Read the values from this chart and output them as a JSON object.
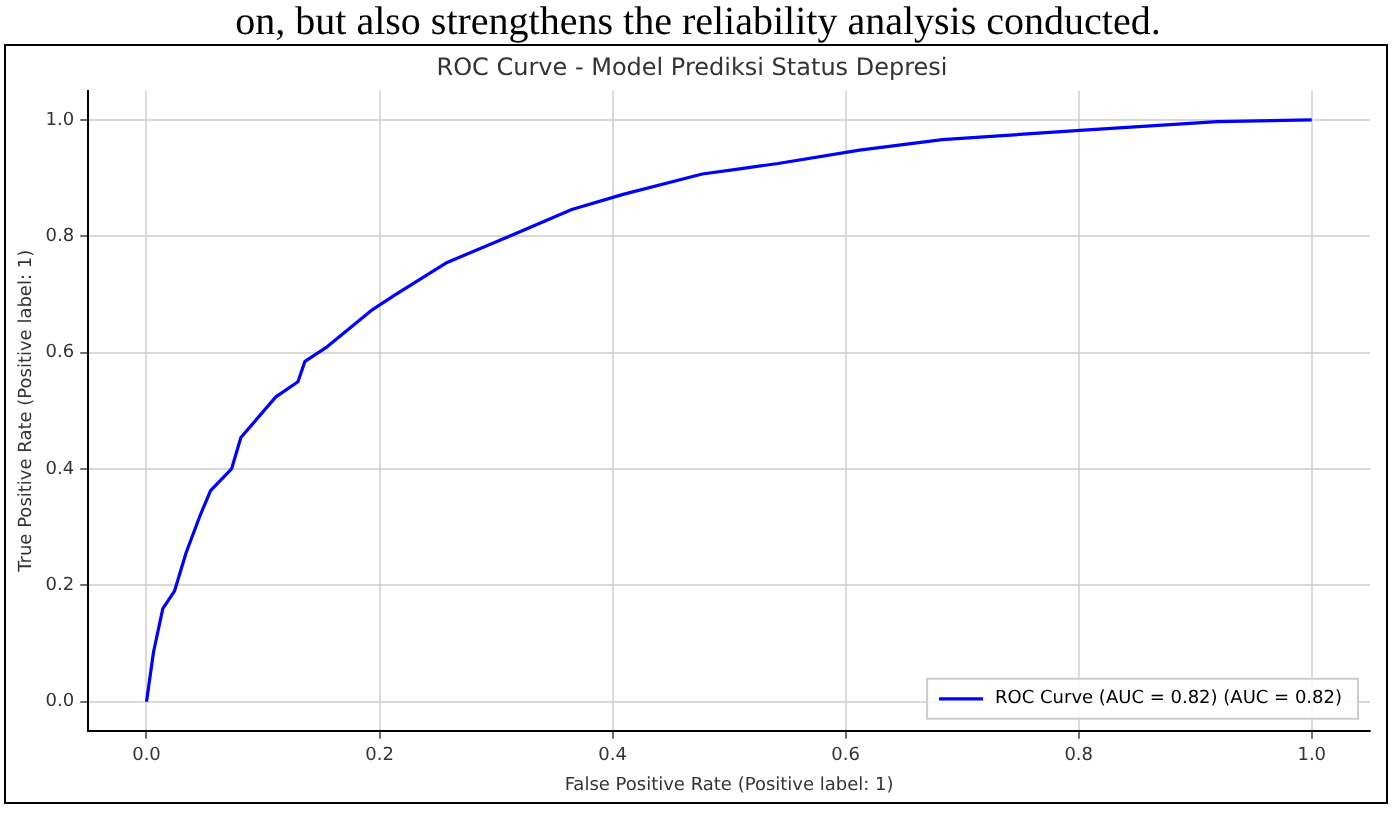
{
  "chart_data": {
    "type": "line",
    "title": "ROC Curve - Model Prediksi Status Depresi",
    "xlabel": "False Positive Rate (Positive label: 1)",
    "ylabel": "True Positive Rate (Positive label: 1)",
    "annotations": [
      "on, but also strengthens the reliability analysis conducted."
    ],
    "series": [
      {
        "name": "ROC Curve (AUC = 0.82) (AUC = 0.82)",
        "color": "#0000ff",
        "x": [
          0,
          0.006,
          0.014,
          0.024,
          0.034,
          0.046,
          0.055,
          0.073,
          0.081,
          0.111,
          0.13,
          0.136,
          0.155,
          0.194,
          0.214,
          0.258,
          0.315,
          0.365,
          0.409,
          0.477,
          0.506,
          0.542,
          0.612,
          0.683,
          0.801,
          0.919,
          1.0
        ],
        "values": [
          0,
          0.085,
          0.16,
          0.19,
          0.256,
          0.32,
          0.363,
          0.4,
          0.454,
          0.524,
          0.55,
          0.585,
          0.61,
          0.674,
          0.7,
          0.755,
          0.803,
          0.846,
          0.872,
          0.907,
          0.915,
          0.925,
          0.948,
          0.966,
          0.982,
          0.997,
          1.0
        ]
      }
    ],
    "xlim": [
      -0.05,
      1.05
    ],
    "ylim": [
      -0.05,
      1.05
    ],
    "xticks": [
      {
        "value": 0,
        "label": "0.0"
      },
      {
        "value": 0.2,
        "label": "0.2"
      },
      {
        "value": 0.4,
        "label": "0.4"
      },
      {
        "value": 0.6,
        "label": "0.6"
      },
      {
        "value": 0.8,
        "label": "0.8"
      },
      {
        "value": 1,
        "label": "1.0"
      }
    ],
    "yticks": [
      {
        "value": 0,
        "label": "0.0"
      },
      {
        "value": 0.2,
        "label": "0.2"
      },
      {
        "value": 0.4,
        "label": "0.4"
      },
      {
        "value": 0.6,
        "label": "0.6"
      },
      {
        "value": 0.8,
        "label": "0.8"
      },
      {
        "value": 1,
        "label": "1.0"
      }
    ],
    "grid": true,
    "legend": "bottom right",
    "marker": "none",
    "line_style": "solid"
  }
}
